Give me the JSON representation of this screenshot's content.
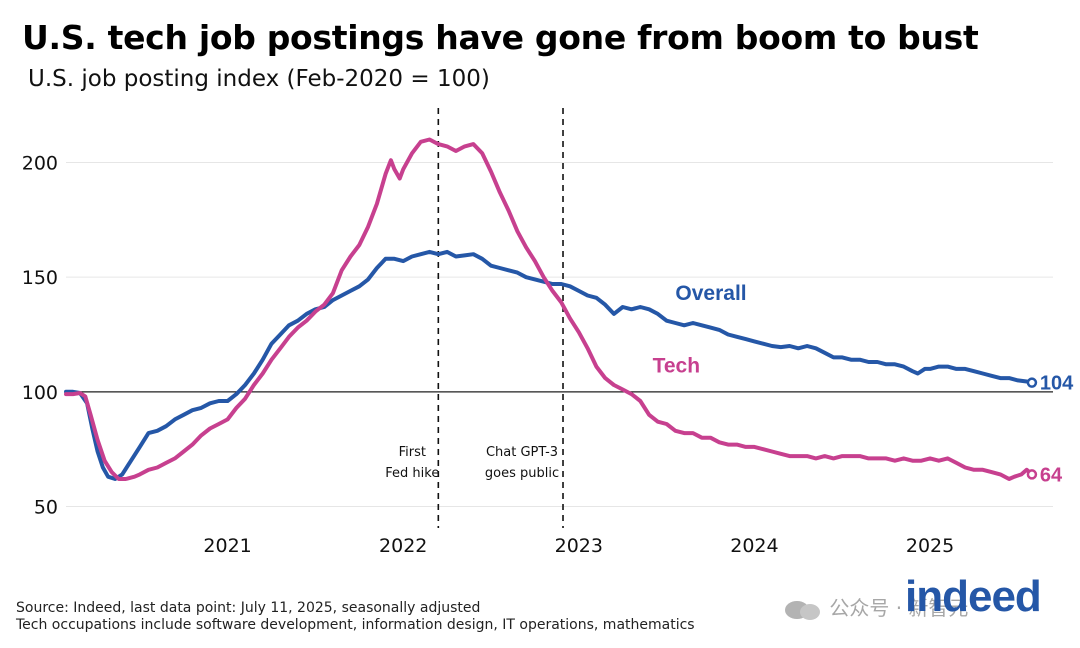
{
  "title": "U.S. tech job postings have gone from boom to bust",
  "subtitle": "U.S. job posting index (Feb-2020 = 100)",
  "footer": {
    "source": "Source: Indeed, last data point: July 11, 2025, seasonally adjusted",
    "note": "Tech occupations include software development, information design, IT operations, mathematics"
  },
  "logo_text": "indeed",
  "watermark_text": "公众号 · 新智元",
  "colors": {
    "overall": "#2557a7",
    "tech": "#c7408f",
    "grid": "#e6e6e6",
    "baseline": "#222222"
  },
  "chart_data": {
    "type": "line",
    "title": "U.S. tech job postings have gone from boom to bust",
    "subtitle": "U.S. job posting index (Feb-2020 = 100)",
    "xlabel": "",
    "ylabel": "",
    "xlim": [
      2020.08,
      2025.7
    ],
    "ylim": [
      45,
      222
    ],
    "yticks": [
      50,
      100,
      150,
      200
    ],
    "xticks": [
      {
        "label": "2021",
        "value": 2021.0
      },
      {
        "label": "2022",
        "value": 2022.0
      },
      {
        "label": "2023",
        "value": 2023.0
      },
      {
        "label": "2024",
        "value": 2024.0
      },
      {
        "label": "2025",
        "value": 2025.0
      }
    ],
    "grid": true,
    "reference_line": 100,
    "events": [
      {
        "date": "2022-03",
        "value": 2022.2,
        "label_lines": [
          "First",
          "Fed hike"
        ]
      },
      {
        "date": "2022-11",
        "value": 2022.91,
        "label_lines": [
          "Chat GPT-3",
          "goes public"
        ]
      }
    ],
    "series": [
      {
        "name": "Overall",
        "end_label": "104",
        "points": [
          [
            2020.08,
            100
          ],
          [
            2020.12,
            100
          ],
          [
            2020.16,
            99.5
          ],
          [
            2020.2,
            95
          ],
          [
            2020.23,
            84
          ],
          [
            2020.26,
            74
          ],
          [
            2020.29,
            67
          ],
          [
            2020.32,
            63
          ],
          [
            2020.36,
            62
          ],
          [
            2020.4,
            64
          ],
          [
            2020.45,
            70
          ],
          [
            2020.5,
            76
          ],
          [
            2020.55,
            82
          ],
          [
            2020.6,
            83
          ],
          [
            2020.65,
            85
          ],
          [
            2020.7,
            88
          ],
          [
            2020.75,
            90
          ],
          [
            2020.8,
            92
          ],
          [
            2020.85,
            93
          ],
          [
            2020.9,
            95
          ],
          [
            2020.95,
            96
          ],
          [
            2021.0,
            96
          ],
          [
            2021.05,
            99
          ],
          [
            2021.1,
            103
          ],
          [
            2021.15,
            108
          ],
          [
            2021.2,
            114
          ],
          [
            2021.25,
            121
          ],
          [
            2021.3,
            125
          ],
          [
            2021.35,
            129
          ],
          [
            2021.4,
            131
          ],
          [
            2021.45,
            134
          ],
          [
            2021.5,
            136
          ],
          [
            2021.55,
            137
          ],
          [
            2021.6,
            140
          ],
          [
            2021.65,
            142
          ],
          [
            2021.7,
            144
          ],
          [
            2021.75,
            146
          ],
          [
            2021.8,
            149
          ],
          [
            2021.85,
            154
          ],
          [
            2021.9,
            158
          ],
          [
            2021.95,
            158
          ],
          [
            2022.0,
            157
          ],
          [
            2022.05,
            159
          ],
          [
            2022.1,
            160
          ],
          [
            2022.15,
            161
          ],
          [
            2022.2,
            160
          ],
          [
            2022.25,
            161
          ],
          [
            2022.3,
            159
          ],
          [
            2022.35,
            159.5
          ],
          [
            2022.4,
            160
          ],
          [
            2022.45,
            158
          ],
          [
            2022.5,
            155
          ],
          [
            2022.55,
            154
          ],
          [
            2022.6,
            153
          ],
          [
            2022.65,
            152
          ],
          [
            2022.7,
            150
          ],
          [
            2022.75,
            149
          ],
          [
            2022.8,
            148
          ],
          [
            2022.85,
            147
          ],
          [
            2022.9,
            147
          ],
          [
            2022.95,
            146
          ],
          [
            2023.0,
            144
          ],
          [
            2023.05,
            142
          ],
          [
            2023.1,
            141
          ],
          [
            2023.15,
            138
          ],
          [
            2023.2,
            134
          ],
          [
            2023.25,
            137
          ],
          [
            2023.3,
            136
          ],
          [
            2023.35,
            137
          ],
          [
            2023.4,
            136
          ],
          [
            2023.45,
            134
          ],
          [
            2023.5,
            131
          ],
          [
            2023.55,
            130
          ],
          [
            2023.6,
            129
          ],
          [
            2023.65,
            130
          ],
          [
            2023.7,
            129
          ],
          [
            2023.75,
            128
          ],
          [
            2023.8,
            127
          ],
          [
            2023.85,
            125
          ],
          [
            2023.9,
            124
          ],
          [
            2023.95,
            123
          ],
          [
            2024.0,
            122
          ],
          [
            2024.05,
            121
          ],
          [
            2024.1,
            120
          ],
          [
            2024.15,
            119.5
          ],
          [
            2024.2,
            120
          ],
          [
            2024.25,
            119
          ],
          [
            2024.3,
            120
          ],
          [
            2024.35,
            119
          ],
          [
            2024.4,
            117
          ],
          [
            2024.45,
            115
          ],
          [
            2024.5,
            115
          ],
          [
            2024.55,
            114
          ],
          [
            2024.6,
            114
          ],
          [
            2024.65,
            113
          ],
          [
            2024.7,
            113
          ],
          [
            2024.75,
            112
          ],
          [
            2024.8,
            112
          ],
          [
            2024.85,
            111
          ],
          [
            2024.9,
            109
          ],
          [
            2024.93,
            108
          ],
          [
            2024.97,
            110
          ],
          [
            2025.0,
            110
          ],
          [
            2025.05,
            111
          ],
          [
            2025.1,
            111
          ],
          [
            2025.15,
            110
          ],
          [
            2025.2,
            110
          ],
          [
            2025.25,
            109
          ],
          [
            2025.3,
            108
          ],
          [
            2025.35,
            107
          ],
          [
            2025.4,
            106
          ],
          [
            2025.45,
            106
          ],
          [
            2025.5,
            105
          ],
          [
            2025.55,
            104.5
          ],
          [
            2025.58,
            104
          ]
        ]
      },
      {
        "name": "Tech",
        "end_label": "64",
        "points": [
          [
            2020.08,
            99
          ],
          [
            2020.12,
            99
          ],
          [
            2020.16,
            99.5
          ],
          [
            2020.19,
            98
          ],
          [
            2020.22,
            90
          ],
          [
            2020.26,
            79
          ],
          [
            2020.3,
            70
          ],
          [
            2020.34,
            65
          ],
          [
            2020.38,
            62
          ],
          [
            2020.42,
            62
          ],
          [
            2020.47,
            63
          ],
          [
            2020.5,
            64
          ],
          [
            2020.55,
            66
          ],
          [
            2020.6,
            67
          ],
          [
            2020.65,
            69
          ],
          [
            2020.7,
            71
          ],
          [
            2020.75,
            74
          ],
          [
            2020.8,
            77
          ],
          [
            2020.85,
            81
          ],
          [
            2020.9,
            84
          ],
          [
            2020.95,
            86
          ],
          [
            2021.0,
            88
          ],
          [
            2021.05,
            93
          ],
          [
            2021.1,
            97
          ],
          [
            2021.15,
            103
          ],
          [
            2021.2,
            108
          ],
          [
            2021.25,
            114
          ],
          [
            2021.3,
            119
          ],
          [
            2021.35,
            124
          ],
          [
            2021.4,
            128
          ],
          [
            2021.45,
            131
          ],
          [
            2021.5,
            135
          ],
          [
            2021.55,
            138
          ],
          [
            2021.6,
            143
          ],
          [
            2021.65,
            153
          ],
          [
            2021.7,
            159
          ],
          [
            2021.75,
            164
          ],
          [
            2021.8,
            172
          ],
          [
            2021.85,
            182
          ],
          [
            2021.9,
            195
          ],
          [
            2021.93,
            201
          ],
          [
            2021.95,
            197
          ],
          [
            2021.98,
            193
          ],
          [
            2022.0,
            197
          ],
          [
            2022.05,
            204
          ],
          [
            2022.1,
            209
          ],
          [
            2022.15,
            210
          ],
          [
            2022.2,
            208
          ],
          [
            2022.25,
            207
          ],
          [
            2022.3,
            205
          ],
          [
            2022.35,
            207
          ],
          [
            2022.4,
            208
          ],
          [
            2022.45,
            204
          ],
          [
            2022.5,
            196
          ],
          [
            2022.55,
            187
          ],
          [
            2022.6,
            179
          ],
          [
            2022.65,
            170
          ],
          [
            2022.7,
            163
          ],
          [
            2022.75,
            157
          ],
          [
            2022.8,
            150
          ],
          [
            2022.85,
            144
          ],
          [
            2022.9,
            139
          ],
          [
            2022.95,
            132
          ],
          [
            2023.0,
            126
          ],
          [
            2023.05,
            119
          ],
          [
            2023.1,
            111
          ],
          [
            2023.15,
            106
          ],
          [
            2023.2,
            103
          ],
          [
            2023.25,
            101
          ],
          [
            2023.3,
            99
          ],
          [
            2023.35,
            96
          ],
          [
            2023.4,
            90
          ],
          [
            2023.45,
            87
          ],
          [
            2023.5,
            86
          ],
          [
            2023.55,
            83
          ],
          [
            2023.6,
            82
          ],
          [
            2023.65,
            82
          ],
          [
            2023.7,
            80
          ],
          [
            2023.75,
            80
          ],
          [
            2023.8,
            78
          ],
          [
            2023.85,
            77
          ],
          [
            2023.9,
            77
          ],
          [
            2023.95,
            76
          ],
          [
            2024.0,
            76
          ],
          [
            2024.05,
            75
          ],
          [
            2024.1,
            74
          ],
          [
            2024.15,
            73
          ],
          [
            2024.2,
            72
          ],
          [
            2024.25,
            72
          ],
          [
            2024.3,
            72
          ],
          [
            2024.35,
            71
          ],
          [
            2024.4,
            72
          ],
          [
            2024.45,
            71
          ],
          [
            2024.5,
            72
          ],
          [
            2024.55,
            72
          ],
          [
            2024.6,
            72
          ],
          [
            2024.65,
            71
          ],
          [
            2024.7,
            71
          ],
          [
            2024.75,
            71
          ],
          [
            2024.8,
            70
          ],
          [
            2024.85,
            71
          ],
          [
            2024.9,
            70
          ],
          [
            2024.95,
            70
          ],
          [
            2025.0,
            71
          ],
          [
            2025.05,
            70
          ],
          [
            2025.1,
            71
          ],
          [
            2025.15,
            69
          ],
          [
            2025.2,
            67
          ],
          [
            2025.25,
            66
          ],
          [
            2025.3,
            66
          ],
          [
            2025.35,
            65
          ],
          [
            2025.4,
            64
          ],
          [
            2025.45,
            62
          ],
          [
            2025.48,
            63
          ],
          [
            2025.52,
            64
          ],
          [
            2025.55,
            66
          ],
          [
            2025.58,
            64
          ]
        ]
      }
    ]
  }
}
